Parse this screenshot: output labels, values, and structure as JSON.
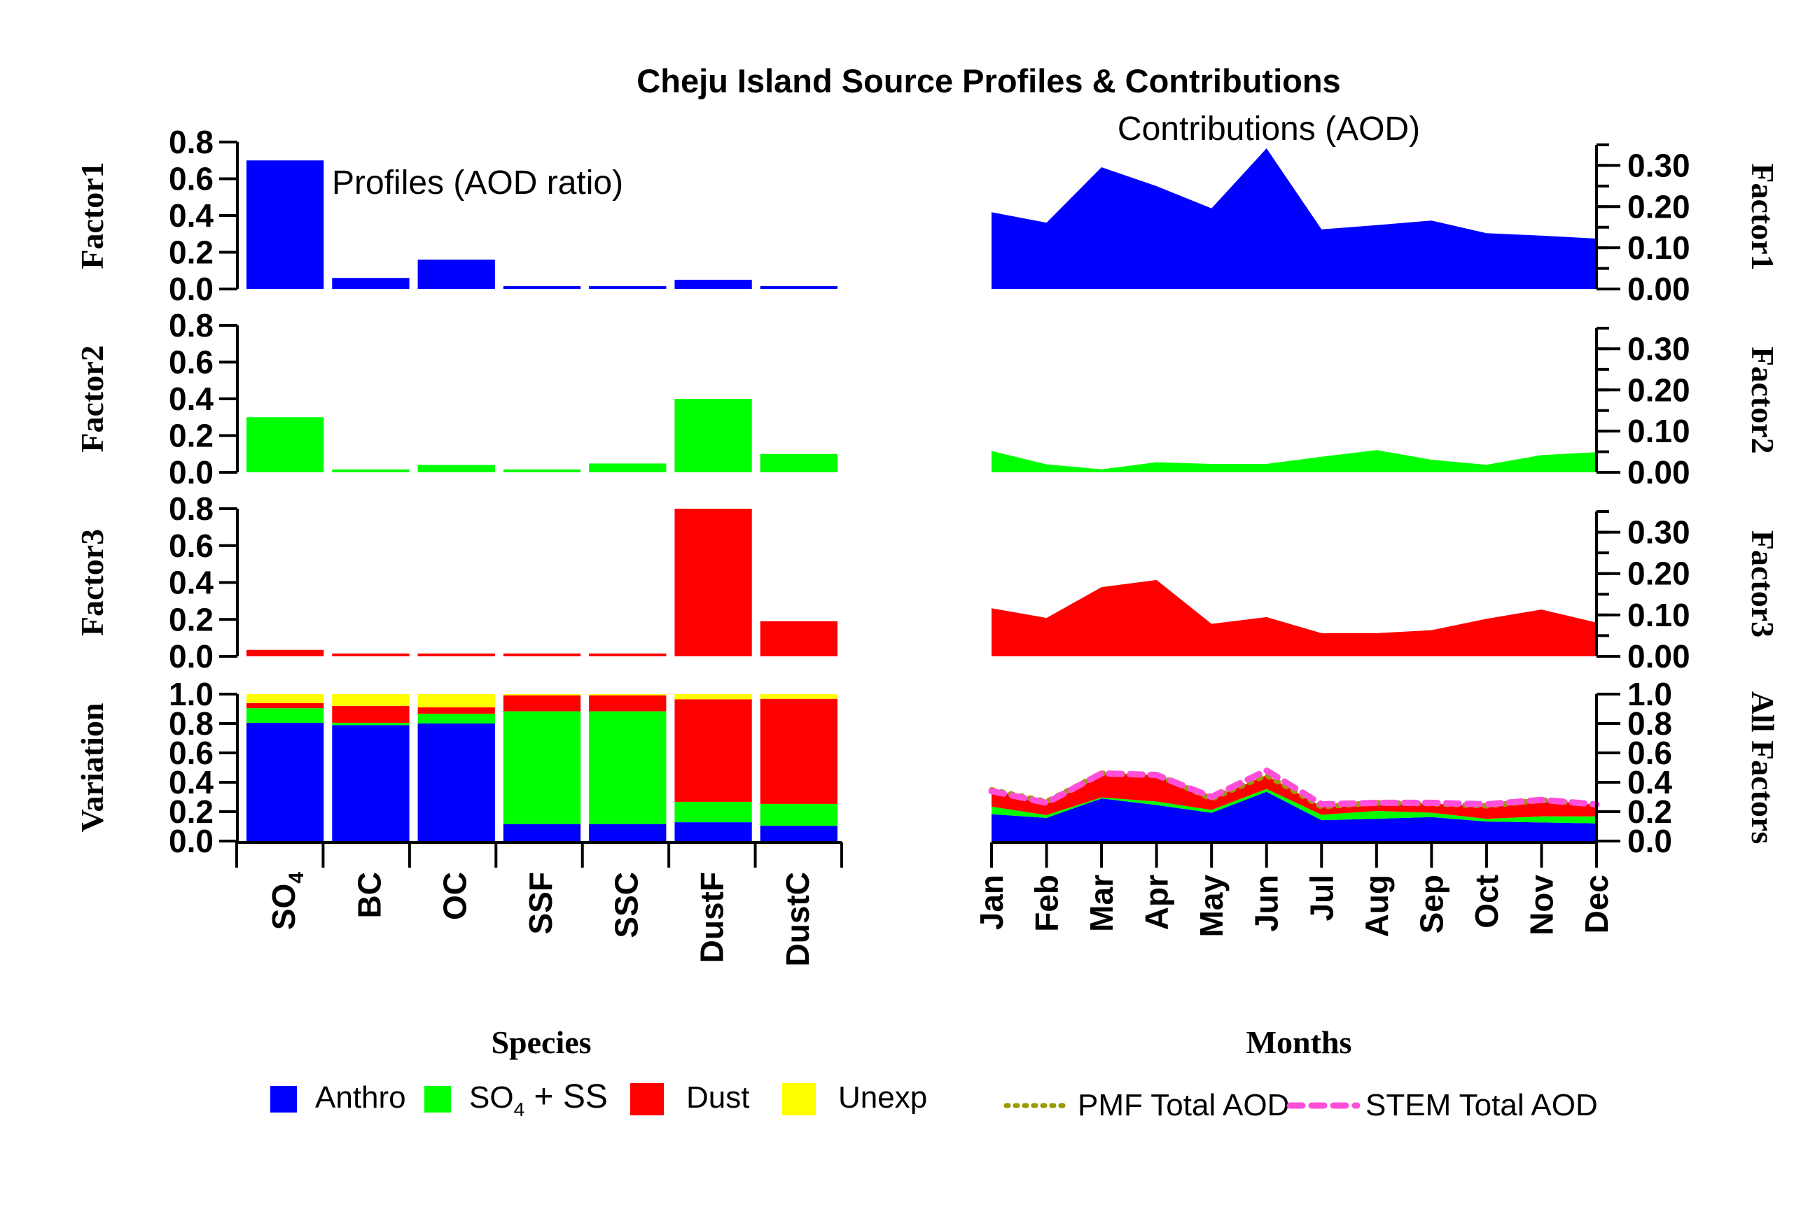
{
  "chart_data": {
    "type": "bar",
    "title": "Cheju Island Source Profiles & Contributions",
    "profiles": {
      "subtitle": "Profiles (AOD ratio)",
      "xlabel": "Species",
      "categories": [
        "SO4",
        "BC",
        "OC",
        "SSF",
        "SSC",
        "DustF",
        "DustC"
      ],
      "category_labels": [
        {
          "main": "SO",
          "sub": "4"
        },
        {
          "main": "BC",
          "sub": ""
        },
        {
          "main": "OC",
          "sub": ""
        },
        {
          "main": "SSF",
          "sub": ""
        },
        {
          "main": "SSC",
          "sub": ""
        },
        {
          "main": "DustF",
          "sub": ""
        },
        {
          "main": "DustC",
          "sub": ""
        }
      ],
      "ylim": [
        0,
        0.8
      ],
      "yticks": [
        "0.0",
        "0.2",
        "0.4",
        "0.6",
        "0.8"
      ],
      "panels": [
        {
          "ylabel": "Factor1",
          "color": "#0000ff",
          "values": [
            0.7,
            0.06,
            0.16,
            0.014,
            0.014,
            0.05,
            0.013
          ]
        },
        {
          "ylabel": "Factor2",
          "color": "#00ff00",
          "values": [
            0.3,
            0.015,
            0.04,
            0.013,
            0.048,
            0.4,
            0.1
          ]
        },
        {
          "ylabel": "Factor3",
          "color": "#ff0000",
          "values": [
            0.035,
            0.01,
            0.01,
            0.01,
            0.01,
            0.8,
            0.19
          ]
        }
      ],
      "variation": {
        "ylabel": "Variation",
        "ylim": [
          0,
          1.0
        ],
        "yticks": [
          "0.0",
          "0.2",
          "0.4",
          "0.6",
          "0.8",
          "1.0"
        ],
        "series": [
          {
            "name": "Anthro",
            "color": "#0000ff",
            "values": [
              0.805,
              0.789,
              0.8,
              0.115,
              0.115,
              0.128,
              0.104
            ]
          },
          {
            "name": "SO4 + SS",
            "color": "#00ff00",
            "values": [
              0.099,
              0.016,
              0.067,
              0.768,
              0.768,
              0.139,
              0.149
            ]
          },
          {
            "name": "Dust",
            "color": "#ff0000",
            "values": [
              0.035,
              0.115,
              0.043,
              0.109,
              0.109,
              0.698,
              0.715
            ]
          },
          {
            "name": "Unexp",
            "color": "#ffff00",
            "values": [
              0.061,
              0.08,
              0.09,
              0.008,
              0.008,
              0.035,
              0.032
            ]
          }
        ]
      }
    },
    "contributions": {
      "subtitle": "Contributions (AOD)",
      "xlabel": "Months",
      "type": "area",
      "months": [
        "Jan",
        "Feb",
        "Mar",
        "Apr",
        "May",
        "Jun",
        "Jul",
        "Aug",
        "Sep",
        "Oct",
        "Nov",
        "Dec"
      ],
      "ylim": [
        0,
        0.35
      ],
      "yticks": [
        "0.00",
        "0.10",
        "0.20",
        "0.30"
      ],
      "panels": [
        {
          "ylabel": "Factor1",
          "color": "#0000ff",
          "values": [
            0.183,
            0.158,
            0.29,
            0.245,
            0.192,
            0.335,
            0.142,
            0.152,
            0.163,
            0.133,
            0.127,
            0.12
          ]
        },
        {
          "ylabel": "Factor2",
          "color": "#00ff00",
          "values": [
            0.051,
            0.019,
            0.007,
            0.024,
            0.02,
            0.02,
            0.037,
            0.053,
            0.03,
            0.018,
            0.041,
            0.048
          ]
        },
        {
          "ylabel": "Factor3",
          "color": "#ff0000",
          "values": [
            0.114,
            0.091,
            0.164,
            0.181,
            0.077,
            0.093,
            0.055,
            0.055,
            0.062,
            0.089,
            0.111,
            0.08
          ]
        }
      ],
      "all_factors": {
        "ylabel": "All Factors",
        "ylim": [
          0,
          1.0
        ],
        "yticks": [
          "0.0",
          "0.2",
          "0.4",
          "0.6",
          "0.8",
          "1.0"
        ],
        "lines": [
          {
            "name": "PMF Total AOD",
            "color": "#999900",
            "style": "dotted",
            "values": [
              0.348,
              0.268,
              0.461,
              0.45,
              0.289,
              0.448,
              0.234,
              0.26,
              0.255,
              0.24,
              0.279,
              0.248
            ]
          },
          {
            "name": "STEM Total AOD",
            "color": "#ff4fd8",
            "style": "dashed",
            "values": [
              0.34,
              0.26,
              0.46,
              0.45,
              0.3,
              0.48,
              0.25,
              0.26,
              0.26,
              0.25,
              0.28,
              0.25
            ]
          }
        ]
      }
    },
    "legend": {
      "species": [
        {
          "label": "Anthro",
          "sub": "",
          "rest": "",
          "color": "#0000ff"
        },
        {
          "label": "SO",
          "sub": "4",
          "rest": " + SS",
          "color": "#00ff00"
        },
        {
          "label": "Dust",
          "sub": "",
          "rest": "",
          "color": "#ff0000"
        },
        {
          "label": "Unexp",
          "sub": "",
          "rest": "",
          "color": "#ffff00"
        }
      ],
      "lines": [
        {
          "label": "PMF Total AOD",
          "color": "#999900",
          "style": "dotted"
        },
        {
          "label": "STEM Total AOD",
          "color": "#ff4fd8",
          "style": "dashed"
        }
      ],
      "placement": "bottom"
    }
  }
}
